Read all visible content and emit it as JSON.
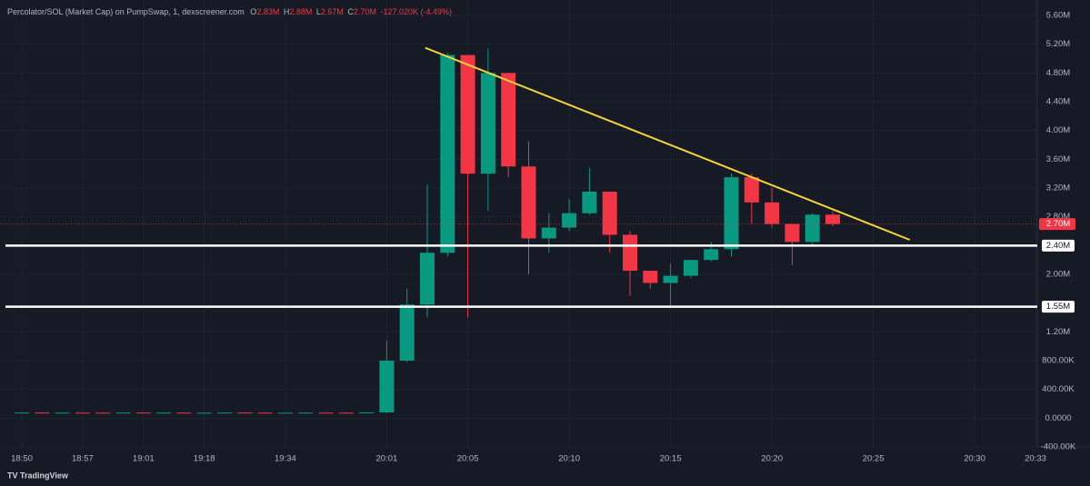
{
  "chart_data": {
    "type": "candlestick",
    "title": "Percolator/SOL (Market Cap) on PumpSwap, 1, dexscreener.com",
    "legend": [
      {
        "key": "O",
        "value": "2.83M"
      },
      {
        "key": "H",
        "value": "2.88M"
      },
      {
        "key": "L",
        "value": "2.67M"
      },
      {
        "key": "C",
        "value": "2.70M"
      }
    ],
    "change": "-127.020K (-4.49%)",
    "categories": [
      "18:50",
      null,
      null,
      "18:57",
      null,
      null,
      "19:01",
      null,
      null,
      "19:18",
      null,
      null,
      null,
      "19:34",
      null,
      null,
      null,
      null,
      "20:01",
      null,
      null,
      null,
      "20:05",
      null,
      null,
      null,
      null,
      "20:10",
      null,
      null,
      null,
      null,
      "20:15",
      null,
      null,
      null,
      null,
      "20:20",
      null,
      null,
      null,
      null,
      "20:25",
      null,
      null,
      null,
      null,
      "20:30",
      null,
      null,
      "20:33"
    ],
    "open": [
      75000,
      78000,
      74000,
      77000,
      76000,
      75000,
      78000,
      76000,
      77000,
      75000,
      76000,
      78000,
      77000,
      75000,
      76000,
      77000,
      76000,
      75000,
      80000,
      800000,
      1580000,
      2300000,
      5050000,
      3400000,
      4800000,
      3500000,
      2500000,
      2650000,
      2850000,
      3150000,
      2550000,
      2050000,
      1880000,
      1980000,
      2200000,
      2350000,
      3350000,
      3000000,
      2700000,
      2450000,
      2830000,
      null,
      null,
      null,
      null,
      null,
      null,
      null,
      null,
      null,
      null
    ],
    "high": [
      80000,
      82000,
      79000,
      81000,
      80000,
      79000,
      82000,
      80000,
      81000,
      79000,
      80000,
      82000,
      81000,
      79000,
      80000,
      81000,
      80000,
      79000,
      1080000,
      1800000,
      3250000,
      5080000,
      5050000,
      5140000,
      4800000,
      3850000,
      2850000,
      3050000,
      3480000,
      3150000,
      2600000,
      2050000,
      2150000,
      2200000,
      2450000,
      3400000,
      3400000,
      3200000,
      2700000,
      2850000,
      2880000,
      null,
      null,
      null,
      null,
      null,
      null,
      null,
      null,
      null,
      null
    ],
    "low": [
      72000,
      74000,
      71000,
      73000,
      72000,
      72000,
      74000,
      73000,
      73000,
      72000,
      73000,
      74000,
      73000,
      72000,
      73000,
      73000,
      73000,
      72000,
      70000,
      780000,
      1400000,
      2250000,
      1400000,
      2880000,
      3350000,
      2000000,
      2300000,
      2600000,
      2830000,
      2300000,
      1700000,
      1800000,
      1550000,
      1950000,
      2180000,
      2250000,
      2700000,
      2650000,
      2130000,
      2400000,
      2670000,
      null,
      null,
      null,
      null,
      null,
      null,
      null,
      null,
      null,
      null
    ],
    "close": [
      78000,
      74000,
      77000,
      76000,
      75000,
      78000,
      76000,
      77000,
      75000,
      76000,
      78000,
      77000,
      75000,
      76000,
      77000,
      76000,
      75000,
      80000,
      800000,
      1580000,
      2300000,
      5050000,
      3400000,
      4800000,
      3500000,
      2500000,
      2650000,
      2850000,
      3150000,
      2550000,
      2050000,
      1880000,
      1980000,
      2200000,
      2350000,
      3350000,
      3000000,
      2700000,
      2450000,
      2830000,
      2700000,
      null,
      null,
      null,
      null,
      null,
      null,
      null,
      null,
      null,
      null
    ],
    "up_color": "#089981",
    "down_color": "#f23645",
    "ylim": [
      -400000,
      5600000
    ],
    "yticks": [
      {
        "value": -400000,
        "label": "-400.00K"
      },
      {
        "value": 0,
        "label": "0.0000"
      },
      {
        "value": 400000,
        "label": "400.00K"
      },
      {
        "value": 800000,
        "label": "800.00K"
      },
      {
        "value": 1200000,
        "label": "1.20M"
      },
      {
        "value": 2000000,
        "label": "2.00M"
      },
      {
        "value": 2800000,
        "label": "2.80M"
      },
      {
        "value": 3200000,
        "label": "3.20M"
      },
      {
        "value": 3600000,
        "label": "3.60M"
      },
      {
        "value": 4000000,
        "label": "4.00M"
      },
      {
        "value": 4400000,
        "label": "4.40M"
      },
      {
        "value": 4800000,
        "label": "4.80M"
      },
      {
        "value": 5200000,
        "label": "5.20M"
      },
      {
        "value": 5600000,
        "label": "5.60M"
      }
    ],
    "grid": true,
    "hlines": [
      {
        "value": 2400000,
        "label": "2.40M",
        "color": "#ffffff"
      },
      {
        "value": 1550000,
        "label": "1.55M",
        "color": "#ffffff"
      }
    ],
    "price_line": {
      "value": 2700000,
      "label": "2.70M",
      "color": "#f23645"
    },
    "trendline": {
      "from": [
        19.9,
        5150000
      ],
      "to": [
        43.8,
        2480000
      ],
      "color": "#f5d53a"
    },
    "footer": "TradingView"
  }
}
